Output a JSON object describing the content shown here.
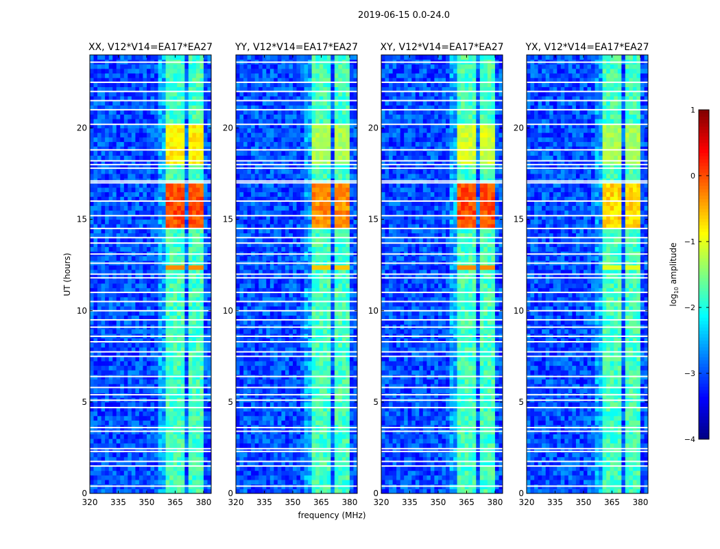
{
  "chart_data": {
    "type": "heatmap",
    "suptitle": "2019-06-15 0.0-24.0",
    "xlabel": "frequency (MHz)",
    "ylabel": "UT (hours)",
    "xlim": [
      320,
      384
    ],
    "ylim": [
      0,
      24
    ],
    "xticks": [
      320,
      335,
      350,
      365,
      380
    ],
    "yticks": [
      0,
      5,
      10,
      15,
      20
    ],
    "panels": [
      {
        "title": "XX, V12*V14=EA17*EA27",
        "rfi_peak_15h": 0.0,
        "rfi_peak_19h": -0.8
      },
      {
        "title": "YY, V12*V14=EA17*EA27",
        "rfi_peak_15h": -0.3,
        "rfi_peak_19h": -1.3
      },
      {
        "title": "XY, V12*V14=EA17*EA27",
        "rfi_peak_15h": 0.0,
        "rfi_peak_19h": -1.1
      },
      {
        "title": "YX, V12*V14=EA17*EA27",
        "rfi_peak_15h": -0.7,
        "rfi_peak_19h": -1.3
      }
    ],
    "background_level": -3.0,
    "rfi_band_mhz": [
      [
        361,
        365.5
      ],
      [
        366.5,
        370.5
      ],
      [
        371.5,
        375.5
      ],
      [
        376.5,
        380.5
      ]
    ],
    "rfi_band_level": -1.8,
    "flagged_hours": [
      0.4,
      1.5,
      1.75,
      2.3,
      2.45,
      3.4,
      3.6,
      4.7,
      5.1,
      5.4,
      5.8,
      6.4,
      7.5,
      7.75,
      8.3,
      8.6,
      9.1,
      9.5,
      10.0,
      10.5,
      11.0,
      11.8,
      12.0,
      12.6,
      13.1,
      13.7,
      14.0,
      14.5,
      15.2,
      16.0,
      17.0,
      17.1,
      17.8,
      18.0,
      18.2,
      18.8,
      20.2,
      21.0,
      21.5,
      22.0,
      22.5,
      23.6
    ],
    "colorbar": {
      "label_main": "log",
      "label_sub": "10",
      "label_rest": " amplitude",
      "colormap": "jet",
      "range": [
        -4,
        1
      ],
      "ticks": [
        "1",
        "0",
        "−1",
        "−2",
        "−3",
        "−4"
      ]
    }
  }
}
